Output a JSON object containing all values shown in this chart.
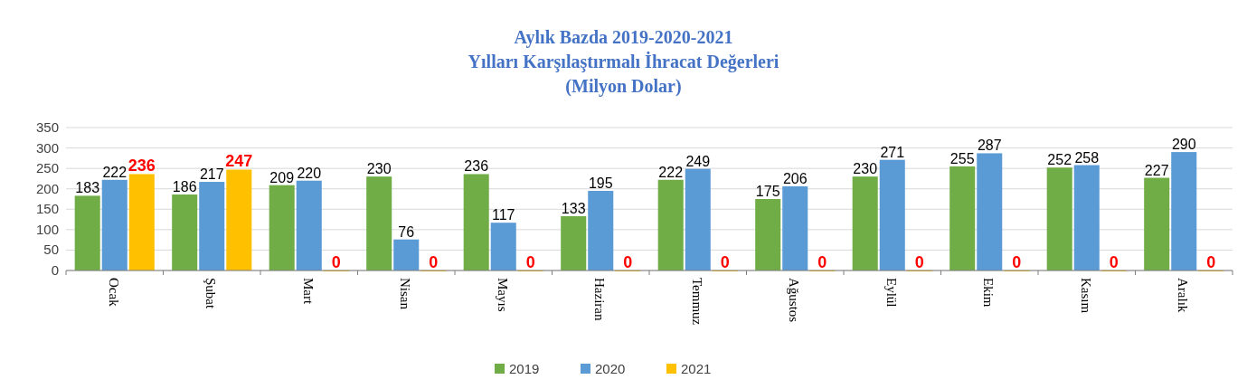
{
  "chart_data": {
    "type": "bar",
    "title": "Aylık Bazda 2019-2020-2021\nYılları Karşılaştırmalı İhracat Değerleri",
    "subtitle": "(Milyon Dolar)",
    "categories": [
      "Ocak",
      "Şubat",
      "Mart",
      "Nisan",
      "Mayıs",
      "Haziran",
      "Temmuz",
      "Ağustos",
      "Eylül",
      "Ekim",
      "Kasım",
      "Aralık"
    ],
    "series": [
      {
        "name": "2019",
        "color": "#70ad47",
        "values": [
          183,
          186,
          209,
          230,
          236,
          133,
          222,
          175,
          230,
          255,
          252,
          227
        ]
      },
      {
        "name": "2020",
        "color": "#5b9bd5",
        "values": [
          222,
          217,
          220,
          76,
          117,
          195,
          249,
          206,
          271,
          287,
          258,
          290
        ]
      },
      {
        "name": "2021",
        "color": "#ffc000",
        "values": [
          236,
          247,
          0,
          0,
          0,
          0,
          0,
          0,
          0,
          0,
          0,
          0
        ]
      }
    ],
    "ylim": [
      0,
      350
    ],
    "yticks": [
      0,
      50,
      100,
      150,
      200,
      250,
      300,
      350
    ],
    "grid": "y",
    "legend": "bottom",
    "data_labels": true
  }
}
